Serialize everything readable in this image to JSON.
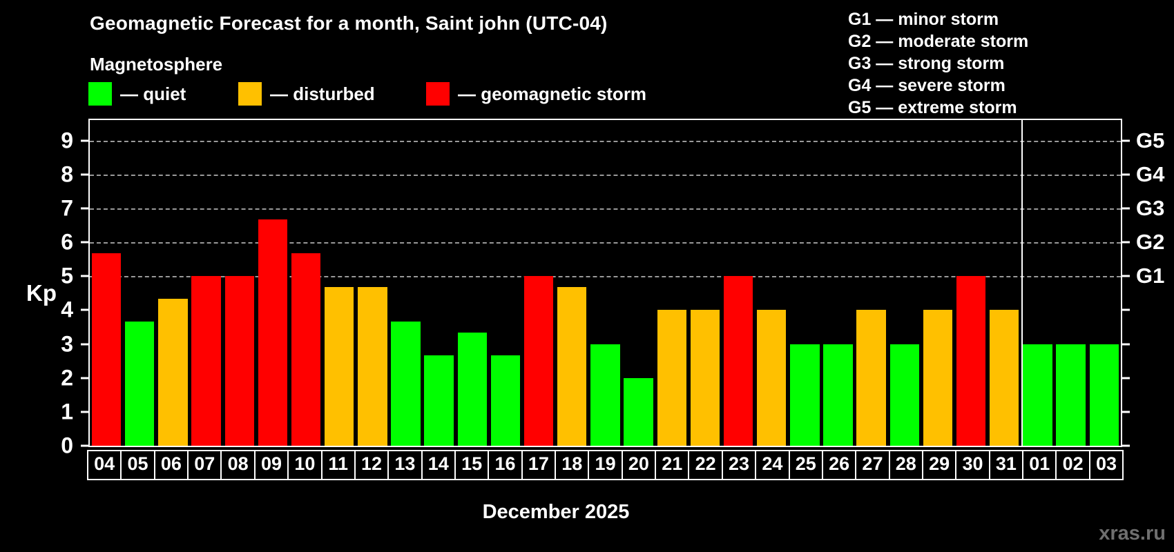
{
  "page": {
    "title": "Geomagnetic Forecast for a month, Saint john (UTC-04)",
    "subtitle": "Magnetosphere",
    "xlabel": "December 2025",
    "watermark": "xras.ru"
  },
  "legend": {
    "items": [
      {
        "name": "quiet",
        "label": "— quiet",
        "color": "#00ff00"
      },
      {
        "name": "disturbed",
        "label": "— disturbed",
        "color": "#ffc000"
      },
      {
        "name": "storm",
        "label": "— geomagnetic storm",
        "color": "#ff0000"
      }
    ]
  },
  "g_legend": [
    "G1 — minor storm",
    "G2 — moderate storm",
    "G3 — strong storm",
    "G4 — severe storm",
    "G5 — extreme storm"
  ],
  "chart_data": {
    "type": "bar",
    "title": "Geomagnetic Forecast for a month, Saint john (UTC-04)",
    "subtitle": "Magnetosphere",
    "xlabel": "December 2025",
    "ylabel": "Kp",
    "ylim": [
      0,
      9.6
    ],
    "yticks": [
      0,
      1,
      2,
      3,
      4,
      5,
      6,
      7,
      8,
      9
    ],
    "gridlines": [
      5,
      6,
      7,
      8,
      9
    ],
    "grid": "dashed, only at Kp 5-9",
    "legend_position": "top-left",
    "right_axis_labels": [
      {
        "kp": 5,
        "label": "G1"
      },
      {
        "kp": 6,
        "label": "G2"
      },
      {
        "kp": 7,
        "label": "G3"
      },
      {
        "kp": 8,
        "label": "G4"
      },
      {
        "kp": 9,
        "label": "G5"
      }
    ],
    "categories": [
      "04",
      "05",
      "06",
      "07",
      "08",
      "09",
      "10",
      "11",
      "12",
      "13",
      "14",
      "15",
      "16",
      "17",
      "18",
      "19",
      "20",
      "21",
      "22",
      "23",
      "24",
      "25",
      "26",
      "27",
      "28",
      "29",
      "30",
      "31",
      "01",
      "02",
      "03"
    ],
    "values": [
      5.67,
      3.67,
      4.33,
      5,
      5,
      6.67,
      5.67,
      4.67,
      4.67,
      3.67,
      2.67,
      3.33,
      2.67,
      5,
      4.67,
      3,
      2,
      4,
      4,
      5,
      4,
      3,
      3,
      4,
      3,
      4,
      5,
      4,
      3,
      3,
      3
    ],
    "statuses": [
      "storm",
      "quiet",
      "disturbed",
      "storm",
      "storm",
      "storm",
      "storm",
      "disturbed",
      "disturbed",
      "quiet",
      "quiet",
      "quiet",
      "quiet",
      "storm",
      "disturbed",
      "quiet",
      "quiet",
      "disturbed",
      "disturbed",
      "storm",
      "disturbed",
      "quiet",
      "quiet",
      "disturbed",
      "quiet",
      "disturbed",
      "storm",
      "disturbed",
      "quiet",
      "quiet",
      "quiet"
    ],
    "colors": {
      "quiet": "#00ff00",
      "disturbed": "#ffc000",
      "storm": "#ff0000"
    },
    "divider_after_index": 27
  }
}
